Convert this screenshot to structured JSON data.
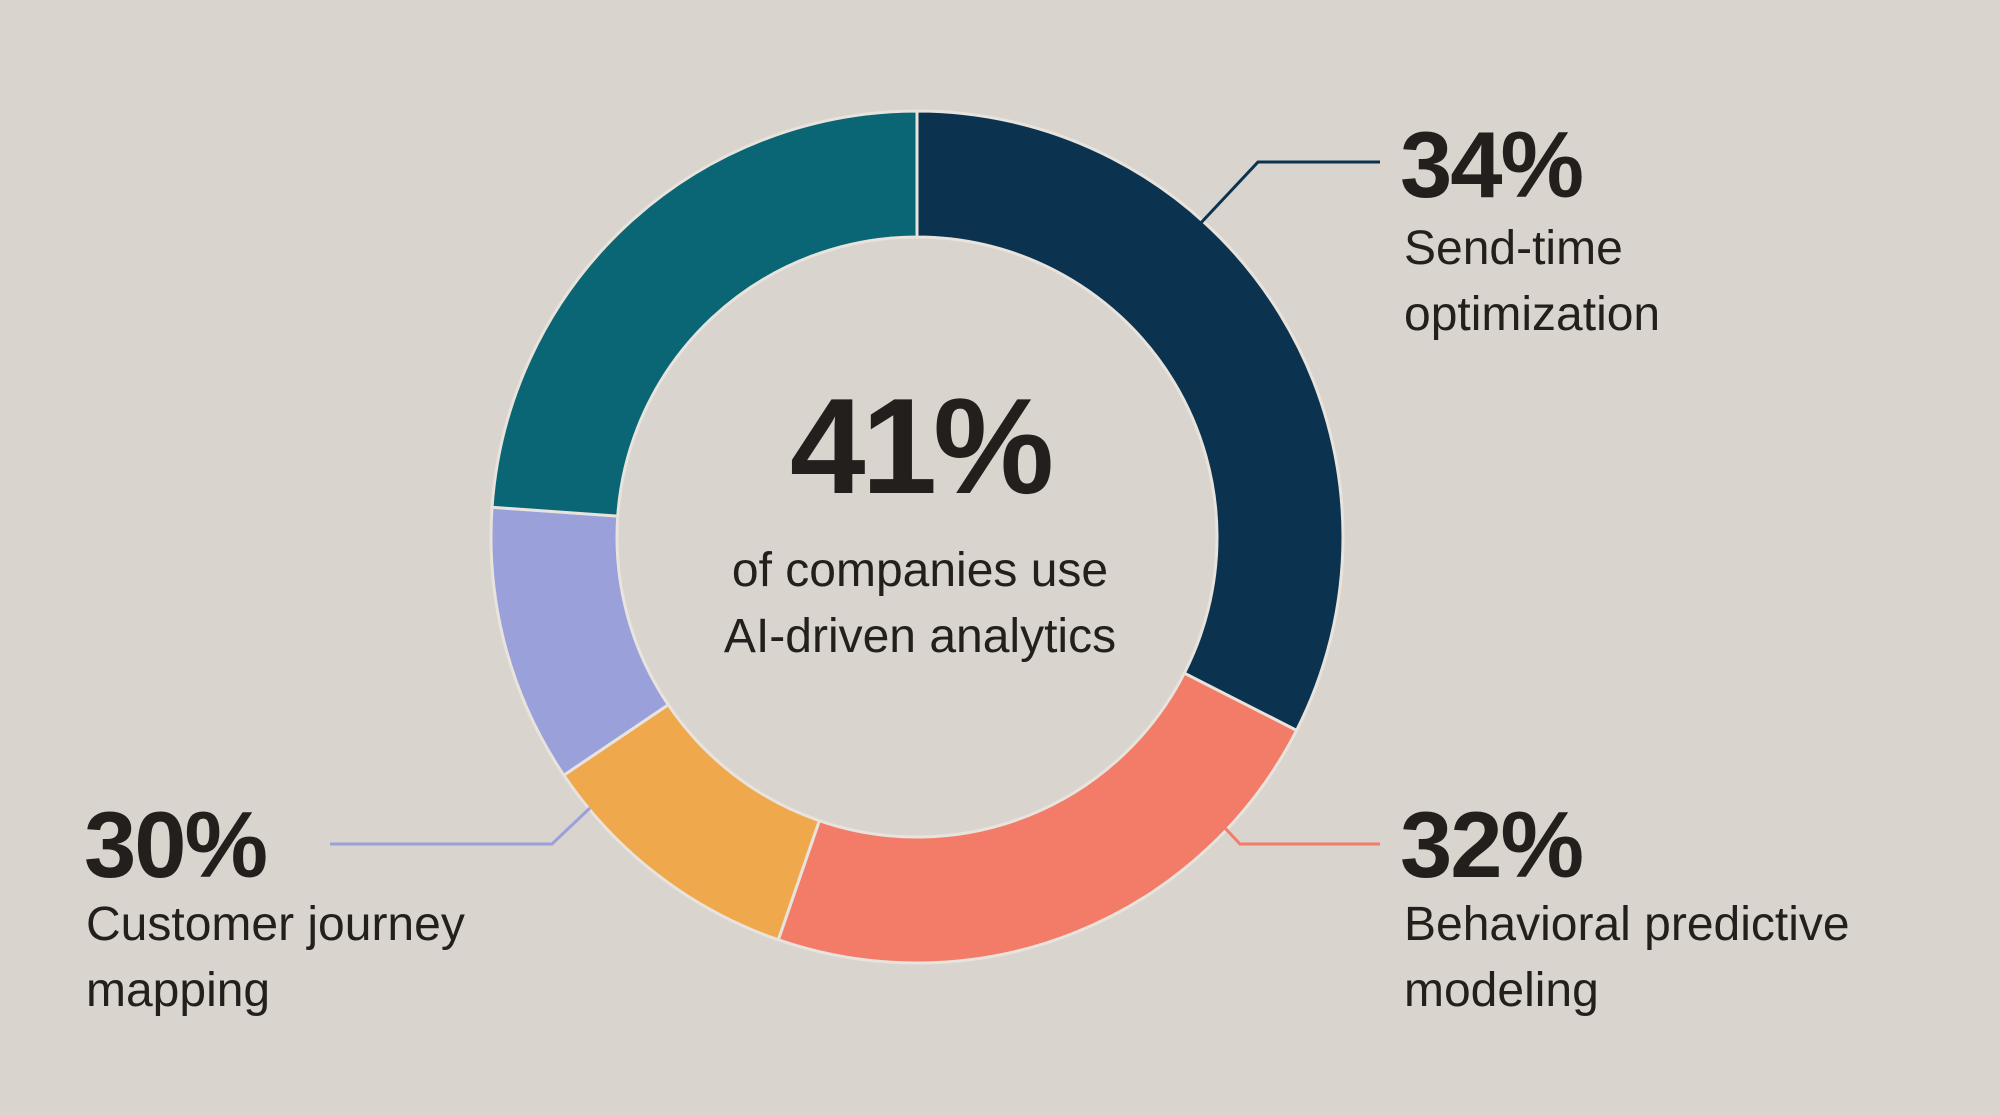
{
  "chart_data": {
    "type": "donut",
    "center": {
      "value": "41%",
      "caption_line1": "of companies use",
      "caption_line2": "AI-driven analytics"
    },
    "segments": [
      {
        "color": "#0b3350",
        "start_deg": 0,
        "end_deg": 117
      },
      {
        "color": "#f27c68",
        "start_deg": 117,
        "end_deg": 199
      },
      {
        "color": "#efa84b",
        "start_deg": 199,
        "end_deg": 236
      },
      {
        "color": "#9aa1da",
        "start_deg": 236,
        "end_deg": 274
      },
      {
        "color": "#0a6674",
        "start_deg": 274,
        "end_deg": 360
      }
    ],
    "callouts": [
      {
        "value": "34%",
        "label_line1": "Send-time",
        "label_line2": "optimization",
        "color": "#0b3350"
      },
      {
        "value": "32%",
        "label_line1": "Behavioral predictive",
        "label_line2": "modeling",
        "color": "#f27c68"
      },
      {
        "value": "30%",
        "label_line1": "Customer journey",
        "label_line2": "mapping",
        "color": "#9aa1da"
      }
    ]
  }
}
